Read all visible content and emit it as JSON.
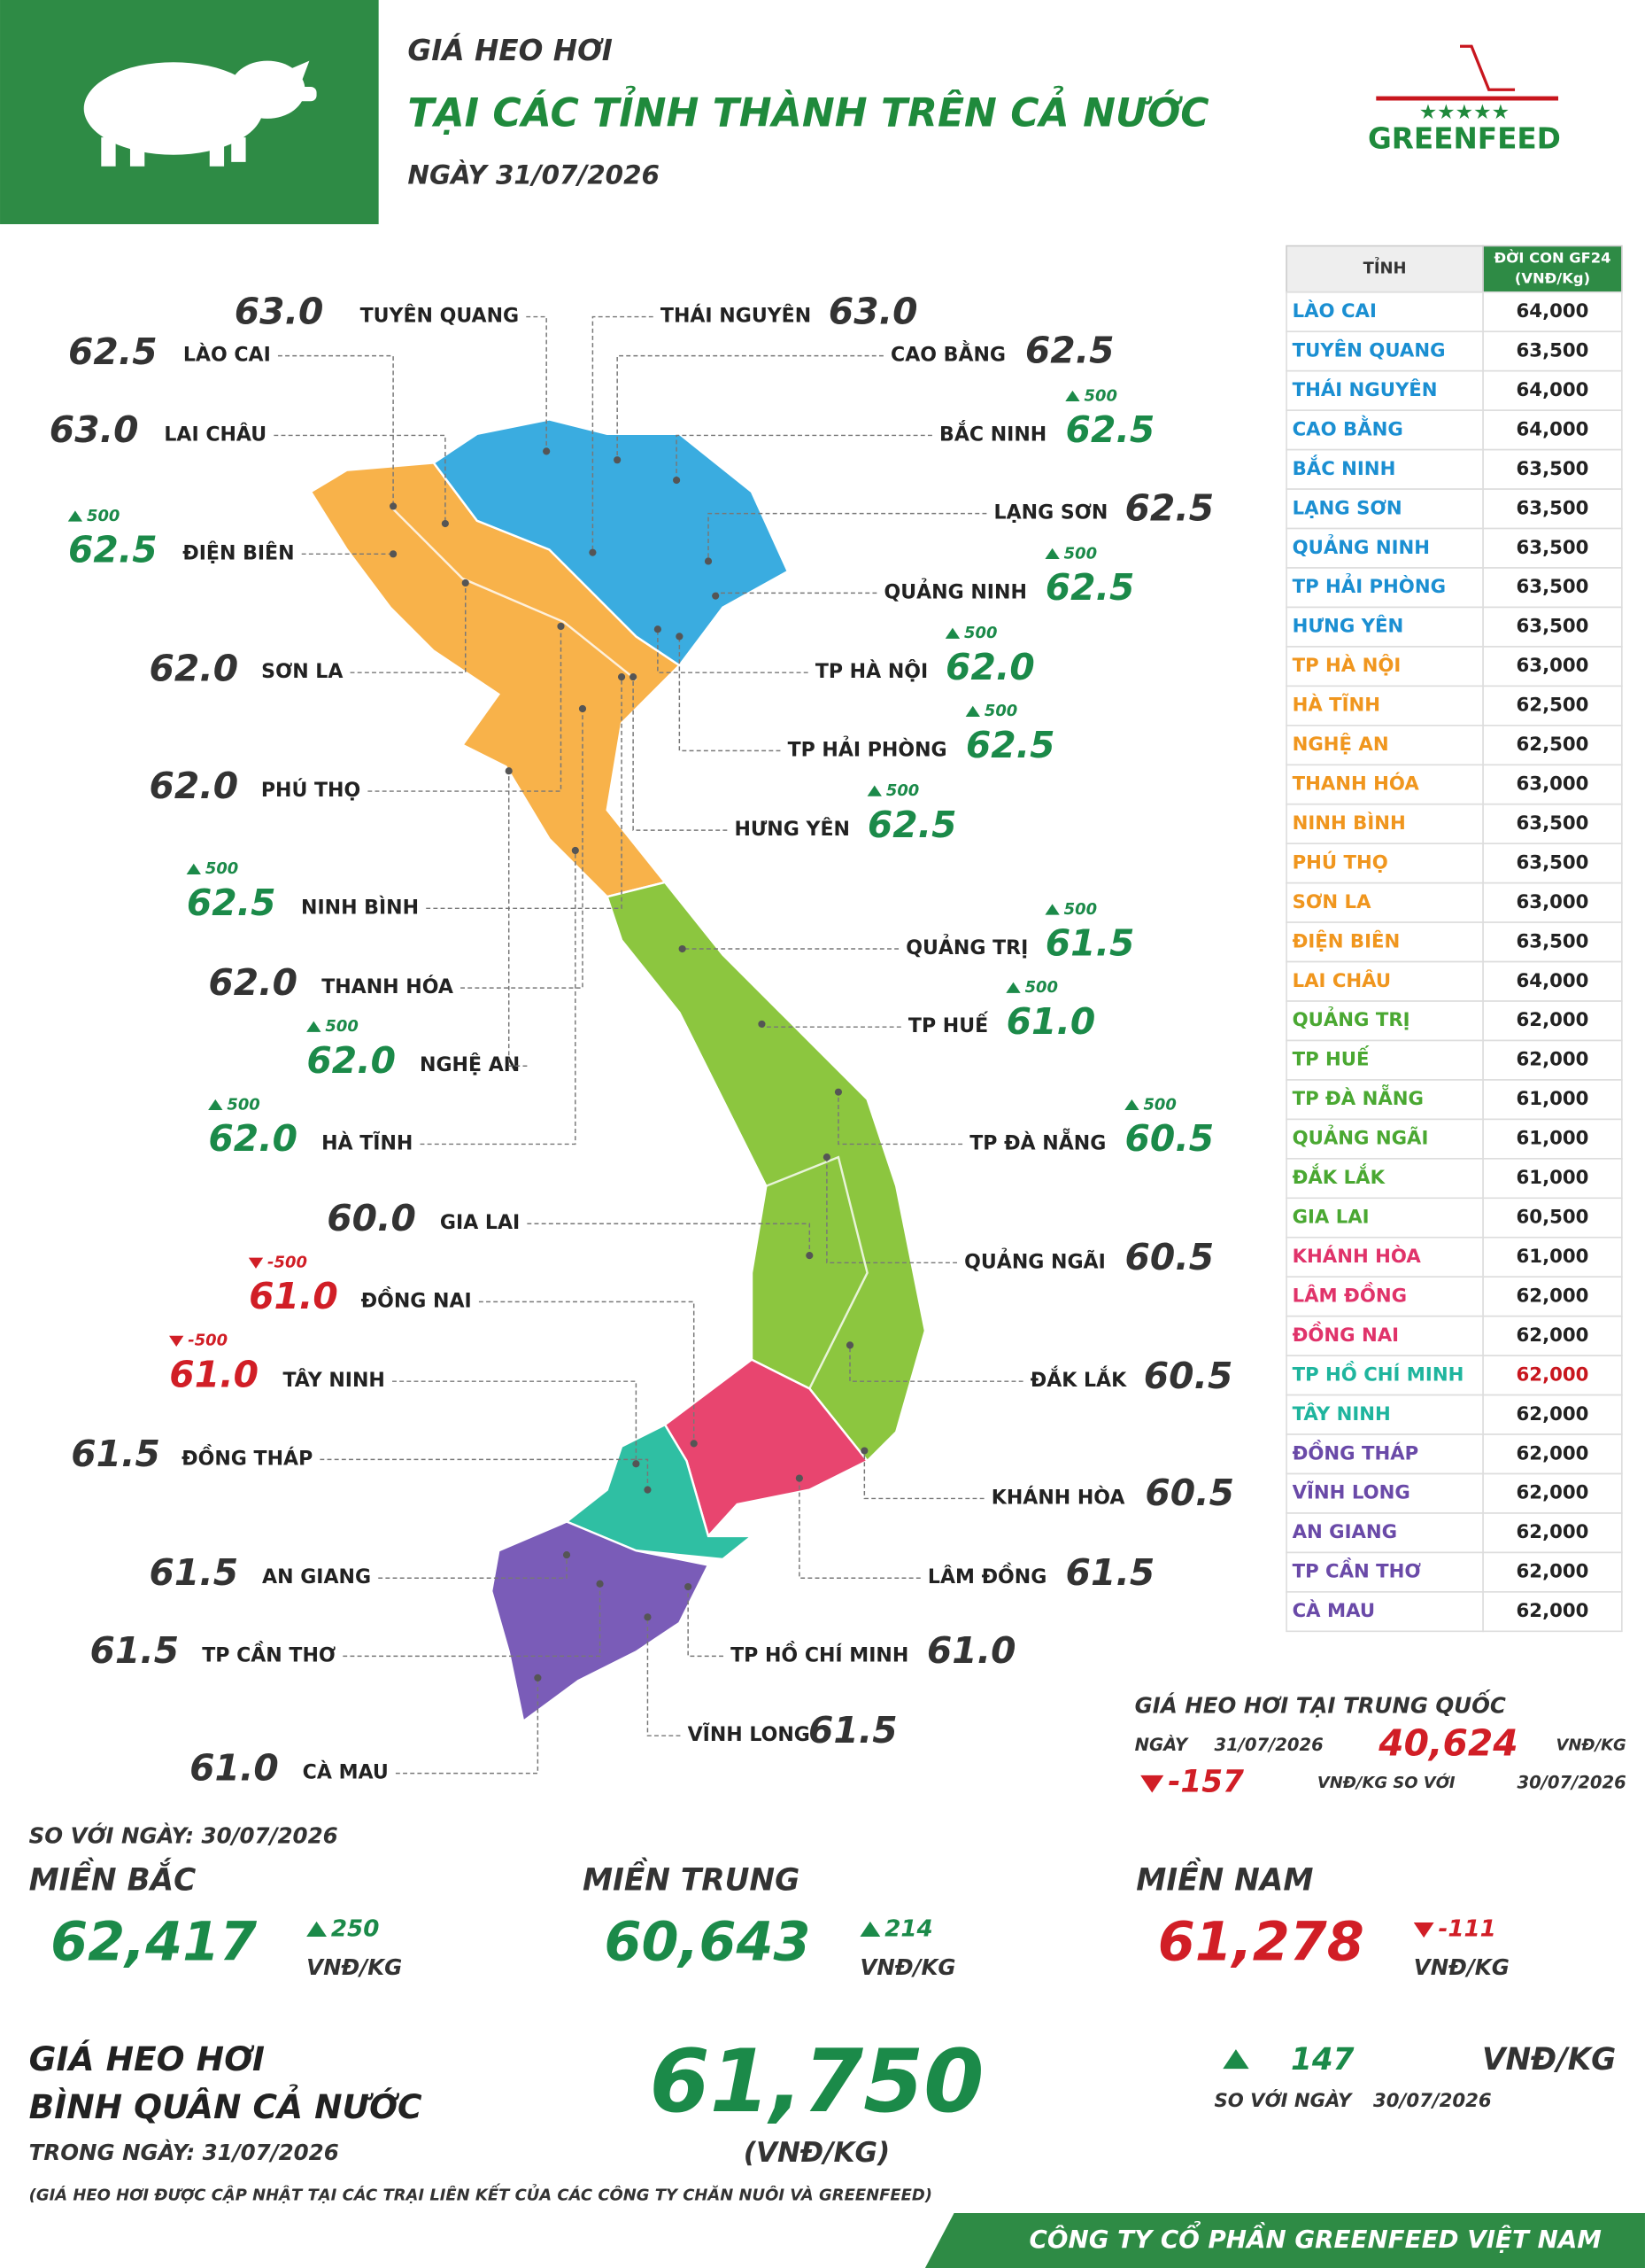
{
  "header": {
    "subtitle": "GIÁ HEO HƠI",
    "title": "TẠI CÁC TỈNH THÀNH TRÊN CẢ NƯỚC",
    "date": "NGÀY 31/07/2026",
    "logo": "GREENFEED"
  },
  "map_labels": [
    {
      "province": "TUYÊN QUANG",
      "price": "63.0"
    },
    {
      "province": "LÀO CAI",
      "price": "62.5"
    },
    {
      "province": "LAI CHÂU",
      "price": "63.0"
    },
    {
      "province": "ĐIỆN BIÊN",
      "price": "62.5",
      "change": "500"
    },
    {
      "province": "SƠN LA",
      "price": "62.0"
    },
    {
      "province": "PHÚ THỌ",
      "price": "62.0"
    },
    {
      "province": "NINH BÌNH",
      "price": "62.5",
      "change": "500"
    },
    {
      "province": "THANH HÓA",
      "price": "62.0"
    },
    {
      "province": "NGHỆ AN",
      "price": "62.0",
      "change": "500"
    },
    {
      "province": "HÀ TĨNH",
      "price": "62.0",
      "change": "500"
    },
    {
      "province": "GIA LAI",
      "price": "60.0"
    },
    {
      "province": "ĐỒNG NAI",
      "price": "61.0",
      "change": "-500"
    },
    {
      "province": "TÂY NINH",
      "price": "61.0",
      "change": "-500"
    },
    {
      "province": "ĐỒNG THÁP",
      "price": "61.5"
    },
    {
      "province": "AN GIANG",
      "price": "61.5"
    },
    {
      "province": "TP CẦN THƠ",
      "price": "61.5"
    },
    {
      "province": "CÀ MAU",
      "price": "61.0"
    },
    {
      "province": "THÁI NGUYÊN",
      "price": "63.0"
    },
    {
      "province": "CAO BẰNG",
      "price": "62.5"
    },
    {
      "province": "BẮC NINH",
      "price": "62.5",
      "change": "500"
    },
    {
      "province": "LẠNG SƠN",
      "price": "62.5"
    },
    {
      "province": "QUẢNG NINH",
      "price": "62.5",
      "change": "500"
    },
    {
      "province": "TP HÀ NỘI",
      "price": "62.0",
      "change": "500"
    },
    {
      "province": "TP HẢI PHÒNG",
      "price": "62.5",
      "change": "500"
    },
    {
      "province": "HƯNG YÊN",
      "price": "62.5",
      "change": "500"
    },
    {
      "province": "QUẢNG TRỊ",
      "price": "61.5",
      "change": "500"
    },
    {
      "province": "TP HUẾ",
      "price": "61.0",
      "change": "500"
    },
    {
      "province": "TP ĐÀ NẴNG",
      "price": "60.5",
      "change": "500"
    },
    {
      "province": "QUẢNG NGÃI",
      "price": "60.5"
    },
    {
      "province": "ĐẮK LẮK",
      "price": "60.5"
    },
    {
      "province": "KHÁNH HÒA",
      "price": "60.5"
    },
    {
      "province": "LÂM ĐỒNG",
      "price": "61.5"
    },
    {
      "province": "TP HỒ CHÍ MINH",
      "price": "61.0"
    },
    {
      "province": "VĨNH LONG",
      "price": "61.5"
    }
  ],
  "table": {
    "header": [
      "TỈNH",
      "ĐỜI CON GF24",
      "(VNĐ/Kg)"
    ],
    "rows": [
      {
        "province": "LÀO CAI",
        "price": "64,000",
        "color": "#1b8fd2"
      },
      {
        "province": "TUYÊN QUANG",
        "price": "63,500",
        "color": "#1b8fd2"
      },
      {
        "province": "THÁI NGUYÊN",
        "price": "64,000",
        "color": "#1b8fd2"
      },
      {
        "province": "CAO BẰNG",
        "price": "64,000",
        "color": "#1b8fd2"
      },
      {
        "province": "BẮC NINH",
        "price": "63,500",
        "color": "#1b8fd2"
      },
      {
        "province": "LẠNG SƠN",
        "price": "63,500",
        "color": "#1b8fd2"
      },
      {
        "province": "QUẢNG NINH",
        "price": "63,500",
        "color": "#1b8fd2"
      },
      {
        "province": "TP HẢI PHÒNG",
        "price": "63,500",
        "color": "#1b8fd2"
      },
      {
        "province": "HƯNG YÊN",
        "price": "63,500",
        "color": "#1b8fd2"
      },
      {
        "province": "TP HÀ NỘI",
        "price": "63,000",
        "color": "#f0961e"
      },
      {
        "province": "HÀ TĨNH",
        "price": "62,500",
        "color": "#f0961e"
      },
      {
        "province": "NGHỆ AN",
        "price": "62,500",
        "color": "#f0961e"
      },
      {
        "province": "THANH HÓA",
        "price": "63,000",
        "color": "#f0961e"
      },
      {
        "province": "NINH BÌNH",
        "price": "63,500",
        "color": "#f0961e"
      },
      {
        "province": "PHÚ THỌ",
        "price": "63,500",
        "color": "#f0961e"
      },
      {
        "province": "SƠN LA",
        "price": "63,000",
        "color": "#f0961e"
      },
      {
        "province": "ĐIỆN BIÊN",
        "price": "63,500",
        "color": "#f0961e"
      },
      {
        "province": "LAI CHÂU",
        "price": "64,000",
        "color": "#f0961e"
      },
      {
        "province": "QUẢNG TRỊ",
        "price": "62,000",
        "color": "#4aa832"
      },
      {
        "province": "TP HUẾ",
        "price": "62,000",
        "color": "#4aa832"
      },
      {
        "province": "TP ĐÀ NẴNG",
        "price": "61,000",
        "color": "#4aa832"
      },
      {
        "province": "QUẢNG NGÃI",
        "price": "61,000",
        "color": "#4aa832"
      },
      {
        "province": "ĐẮK LẮK",
        "price": "61,000",
        "color": "#4aa832"
      },
      {
        "province": "GIA LAI",
        "price": "60,500",
        "color": "#4aa832"
      },
      {
        "province": "KHÁNH HÒA",
        "price": "61,000",
        "color": "#e0336a"
      },
      {
        "province": "LÂM ĐỒNG",
        "price": "62,000",
        "color": "#e0336a"
      },
      {
        "province": "ĐỒNG NAI",
        "price": "62,000",
        "color": "#e0336a"
      },
      {
        "province": "TP HỒ CHÍ MINH",
        "price": "62,000",
        "color": "#1fb59e",
        "price_color": "#c8161e"
      },
      {
        "province": "TÂY NINH",
        "price": "62,000",
        "color": "#1fb59e"
      },
      {
        "province": "ĐỒNG THÁP",
        "price": "62,000",
        "color": "#6a4aa8"
      },
      {
        "province": "VĨNH LONG",
        "price": "62,000",
        "color": "#6a4aa8"
      },
      {
        "province": "AN GIANG",
        "price": "62,000",
        "color": "#6a4aa8"
      },
      {
        "province": "TP CẦN THƠ",
        "price": "62,000",
        "color": "#6a4aa8"
      },
      {
        "province": "CÀ MAU",
        "price": "62,000",
        "color": "#6a4aa8"
      }
    ]
  },
  "china": {
    "title": "GIÁ HEO HƠI TẠI TRUNG QUỐC",
    "date_label": "NGÀY",
    "date": "31/07/2026",
    "price": "40,624",
    "unit": "VNĐ/KG",
    "change": "-157",
    "change_unit": "VNĐ/KG SO VỚI",
    "compare_date": "30/07/2026"
  },
  "regions": {
    "compare_label": "SO VỚI NGÀY: 30/07/2026",
    "items": [
      {
        "name": "MIỀN BẮC",
        "price": "62,417",
        "change": "250",
        "unit": "VNĐ/KG"
      },
      {
        "name": "MIỀN TRUNG",
        "price": "60,643",
        "change": "214",
        "unit": "VNĐ/KG"
      },
      {
        "name": "MIỀN NAM",
        "price": "61,278",
        "change": "-111",
        "unit": "VNĐ/KG"
      }
    ]
  },
  "national": {
    "line1": "GIÁ HEO HƠI",
    "line2": "BÌNH QUÂN CẢ NƯỚC",
    "date": "TRONG NGÀY: 31/07/2026",
    "price": "61,750",
    "unit": "(VNĐ/KG)",
    "change": "147",
    "change_unit": "VNĐ/KG",
    "compare_label": "SO VỚI NGÀY",
    "compare_date": "30/07/2026"
  },
  "footnote": "(GIÁ HEO HƠI ĐƯỢC CẬP NHẬT TẠI CÁC TRẠI LIÊN KẾT CỦA CÁC CÔNG TY CHĂN NUÔI VÀ GREENFEED)",
  "footer": "CÔNG TY CỔ PHẦN GREENFEED VIỆT NAM"
}
